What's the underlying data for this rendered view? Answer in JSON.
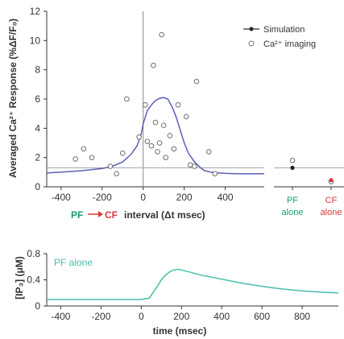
{
  "chart_data": [
    {
      "type": "scatter",
      "ylabel": "Averaged Ca²⁺ Response (%ΔF/F₀)",
      "xlabel_parts": [
        "PF",
        "CF",
        "interval (Δt msec)"
      ],
      "xlim": [
        -470,
        590
      ],
      "ylim": [
        0,
        12
      ],
      "xticks": [
        -400,
        -200,
        0,
        200,
        400
      ],
      "yticks": [
        0,
        2,
        4,
        6,
        8,
        10,
        12
      ],
      "legend": {
        "placement": "top-right",
        "entries": [
          "Simulation",
          "Ca²⁺ imaging"
        ]
      },
      "hline": 1.3,
      "series": [
        {
          "name": "Simulation",
          "style": "line",
          "color": "#5b5fb5",
          "x": [
            -470,
            -400,
            -300,
            -200,
            -150,
            -100,
            -60,
            -30,
            -10,
            0,
            20,
            40,
            60,
            80,
            100,
            120,
            140,
            160,
            180,
            200,
            220,
            250,
            280,
            300,
            330,
            360,
            400,
            450,
            500,
            590
          ],
          "y": [
            0.95,
            1.0,
            1.1,
            1.25,
            1.4,
            1.7,
            2.2,
            2.8,
            3.6,
            4.3,
            5.2,
            5.6,
            5.9,
            6.05,
            6.1,
            6.0,
            5.5,
            4.8,
            3.9,
            3.0,
            2.3,
            1.7,
            1.3,
            1.1,
            1.0,
            0.95,
            0.92,
            0.9,
            0.9,
            0.9
          ]
        },
        {
          "name": "Ca²⁺ imaging",
          "style": "open-circle",
          "x": [
            -330,
            -290,
            -250,
            -160,
            -130,
            -100,
            -80,
            -20,
            10,
            20,
            40,
            50,
            60,
            70,
            80,
            90,
            100,
            110,
            130,
            150,
            170,
            210,
            230,
            250,
            260,
            320,
            350
          ],
          "y": [
            1.9,
            2.6,
            2.0,
            1.4,
            0.9,
            2.3,
            6.0,
            3.4,
            5.6,
            3.1,
            2.8,
            8.3,
            4.4,
            2.4,
            3.0,
            10.4,
            4.2,
            2.0,
            3.5,
            2.6,
            5.6,
            4.8,
            1.5,
            1.4,
            7.2,
            2.4,
            0.9
          ]
        }
      ],
      "side_panel": {
        "categories": [
          "PF alone",
          "CF alone"
        ],
        "category_labels": [
          [
            "PF",
            "alone"
          ],
          [
            "CF",
            "alone"
          ]
        ],
        "category_colors": [
          "#1a9b6a",
          "#d8383e"
        ],
        "simulation": [
          1.3,
          0.45
        ],
        "imaging": [
          1.8,
          0.35
        ]
      }
    },
    {
      "type": "line",
      "xlabel": "time (msec)",
      "ylabel": "[IP₃] (μM)",
      "annotation": "PF alone",
      "color": "#44c0a8",
      "xlim": [
        -470,
        980
      ],
      "ylim": [
        0,
        0.8
      ],
      "xticks": [
        -400,
        -200,
        0,
        200,
        400,
        600,
        800
      ],
      "yticks": [
        0,
        0.4,
        0.8
      ],
      "x": [
        -470,
        -200,
        0,
        40,
        80,
        100,
        120,
        140,
        160,
        180,
        200,
        240,
        300,
        400,
        500,
        600,
        700,
        800,
        900,
        980
      ],
      "y": [
        0.1,
        0.1,
        0.1,
        0.12,
        0.3,
        0.4,
        0.47,
        0.52,
        0.55,
        0.56,
        0.55,
        0.52,
        0.47,
        0.41,
        0.35,
        0.3,
        0.26,
        0.23,
        0.21,
        0.2
      ]
    }
  ]
}
